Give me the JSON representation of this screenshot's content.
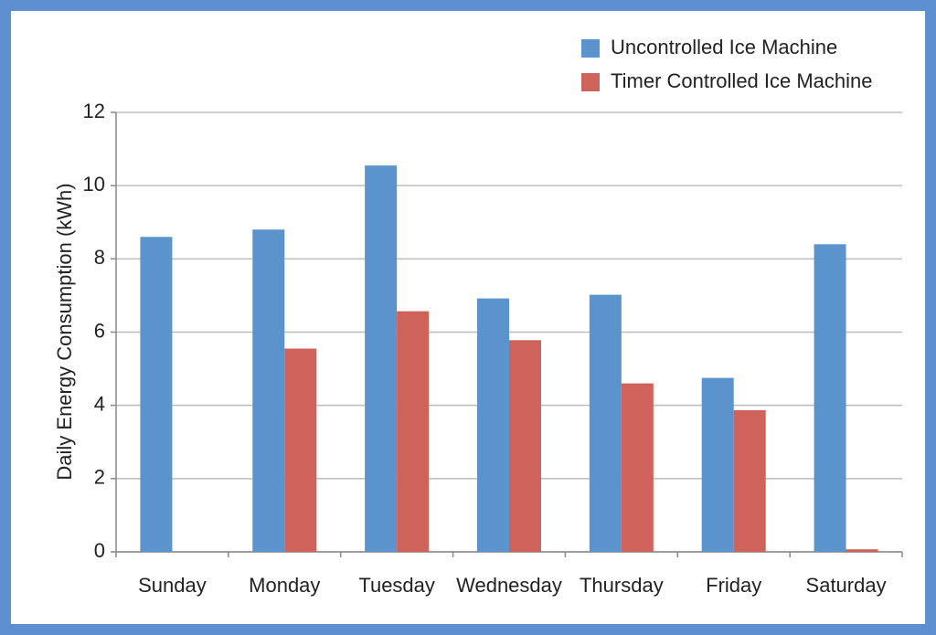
{
  "chart_data": {
    "type": "bar",
    "ylabel": "Daily Energy Consumption (kWh)",
    "categories": [
      "Sunday",
      "Monday",
      "Tuesday",
      "Wednesday",
      "Thursday",
      "Friday",
      "Saturday"
    ],
    "series": [
      {
        "name": "Uncontrolled Ice Machine",
        "color": "#5b93cc",
        "values": [
          8.6,
          8.8,
          10.55,
          6.92,
          7.02,
          4.75,
          8.4
        ]
      },
      {
        "name": "Timer Controlled Ice Machine",
        "color": "#d0625c",
        "values": [
          0,
          5.55,
          6.57,
          5.78,
          4.6,
          3.87,
          0.07
        ]
      }
    ],
    "ylim": [
      0,
      12
    ],
    "yticks": [
      0,
      2,
      4,
      6,
      8,
      10,
      12
    ],
    "grid": true,
    "legend": "top-right"
  }
}
